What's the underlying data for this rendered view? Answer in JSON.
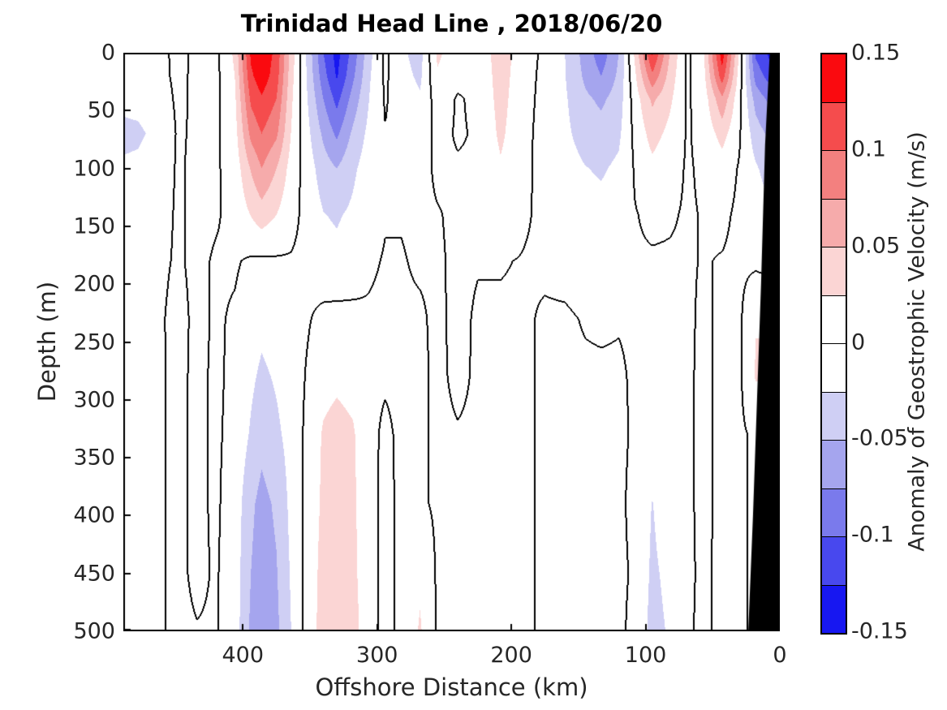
{
  "chart_data": {
    "type": "filled-contour",
    "title": "Trinidad Head Line , 2018/06/20",
    "xlabel": "Offshore Distance (km)",
    "ylabel": "Depth (m)",
    "units": "m/s",
    "x_axis_reversed": true,
    "x_range_km": [
      489,
      0
    ],
    "depth_range_m": [
      0,
      500
    ],
    "x_ticks": [
      {
        "label": "400",
        "km": 400
      },
      {
        "label": "300",
        "km": 300
      },
      {
        "label": "200",
        "km": 200
      },
      {
        "label": "100",
        "km": 100
      },
      {
        "label": "0",
        "km": 0
      }
    ],
    "y_ticks": [
      {
        "label": "0",
        "m": 0
      },
      {
        "label": "50",
        "m": 50
      },
      {
        "label": "100",
        "m": 100
      },
      {
        "label": "150",
        "m": 150
      },
      {
        "label": "200",
        "m": 200
      },
      {
        "label": "250",
        "m": 250
      },
      {
        "label": "300",
        "m": 300
      },
      {
        "label": "350",
        "m": 350
      },
      {
        "label": "400",
        "m": 400
      },
      {
        "label": "450",
        "m": 450
      },
      {
        "label": "500",
        "m": 500
      }
    ],
    "colorbar": {
      "label": "Anomaly of Geostrophic Velocity (m/s)",
      "ticks": [
        {
          "label": "0.15",
          "value": 0.15
        },
        {
          "label": "0.1",
          "value": 0.1
        },
        {
          "label": "0.05",
          "value": 0.05
        },
        {
          "label": "0",
          "value": 0
        },
        {
          "label": "-0.05",
          "value": -0.05
        },
        {
          "label": "-0.1",
          "value": -0.1
        },
        {
          "label": "-0.15",
          "value": -0.15
        }
      ],
      "level_step": 0.025,
      "band_colors_top_to_bottom": [
        "#fa0a0f",
        "#f54c4d",
        "#f3807f",
        "#f6abab",
        "#fbd5d4",
        "#ffffff",
        "#ffffff",
        "#cfcff4",
        "#a5a5ee",
        "#7a7aec",
        "#4848ee",
        "#1717f1"
      ]
    },
    "positive_band_colors_low_to_high": [
      "#fbd5d4",
      "#f6abab",
      "#f3807f",
      "#f54c4d",
      "#fa0a0f"
    ],
    "negative_band_colors_low_to_high": [
      "#cfcff4",
      "#a5a5ee",
      "#7a7aec",
      "#4848ee",
      "#1717f1"
    ],
    "zero_contour_color": "#000000",
    "bathymetry_mask": {
      "color": "#000000",
      "points_km_depth": [
        [
          7.5,
          0
        ],
        [
          11,
          80
        ],
        [
          14,
          200
        ],
        [
          17,
          300
        ],
        [
          20,
          400
        ],
        [
          23.5,
          500
        ]
      ]
    },
    "grid": {
      "x_km": [
        489,
        478,
        462,
        448,
        434,
        420,
        406,
        394,
        386,
        375,
        364,
        352,
        340,
        330,
        318,
        305,
        294,
        282,
        268,
        255,
        240,
        225,
        208,
        190,
        175,
        160,
        145,
        133,
        120,
        108,
        95,
        82,
        69,
        57,
        43,
        30,
        18,
        8,
        0
      ],
      "depth_m": [
        0,
        20,
        40,
        70,
        100,
        140,
        180,
        230,
        280,
        330,
        390,
        450,
        500
      ],
      "anomaly_ms": [
        [
          -0.012,
          -0.01,
          -0.006,
          0.006,
          -0.005,
          -0.006,
          0.03,
          0.13,
          0.145,
          0.118,
          0.04,
          -0.03,
          -0.1,
          -0.135,
          -0.09,
          -0.03,
          0.005,
          -0.02,
          -0.035,
          0.03,
          0.01,
          0.008,
          0.038,
          0.01,
          -0.005,
          -0.025,
          -0.06,
          -0.09,
          -0.05,
          0.03,
          0.13,
          0.05,
          -0.005,
          0.02,
          0.14,
          0.02,
          -0.105,
          -0.13,
          -0.135
        ],
        [
          -0.012,
          -0.011,
          -0.006,
          0.005,
          -0.005,
          -0.006,
          0.025,
          0.12,
          0.14,
          0.112,
          0.035,
          -0.028,
          -0.09,
          -0.128,
          -0.08,
          -0.026,
          0.004,
          -0.016,
          -0.03,
          0.022,
          0.006,
          0.006,
          0.036,
          0.008,
          -0.006,
          -0.024,
          -0.055,
          -0.075,
          -0.045,
          0.02,
          0.095,
          0.04,
          -0.004,
          0.015,
          0.115,
          0.012,
          -0.085,
          -0.11,
          -0.115
        ],
        [
          -0.02,
          -0.018,
          -0.01,
          0.004,
          -0.004,
          -0.005,
          0.02,
          0.105,
          0.122,
          0.1,
          0.03,
          -0.024,
          -0.075,
          -0.108,
          -0.065,
          -0.022,
          0.002,
          -0.01,
          -0.022,
          0.012,
          -0.002,
          0.004,
          0.034,
          0.006,
          -0.006,
          -0.022,
          -0.045,
          -0.055,
          -0.038,
          0.012,
          0.055,
          0.03,
          -0.003,
          0.01,
          0.07,
          0.006,
          -0.06,
          -0.08,
          -0.085
        ],
        [
          -0.03,
          -0.029,
          -0.018,
          0.003,
          -0.004,
          -0.004,
          0.015,
          0.082,
          0.1,
          0.08,
          0.024,
          -0.018,
          -0.055,
          -0.08,
          -0.045,
          -0.016,
          -0.001,
          -0.005,
          -0.012,
          0.006,
          -0.002,
          0.002,
          0.03,
          0.004,
          -0.006,
          -0.02,
          -0.035,
          -0.04,
          -0.03,
          0.006,
          0.035,
          0.018,
          -0.002,
          0.006,
          0.035,
          0.002,
          -0.038,
          -0.055,
          -0.06
        ],
        [
          -0.022,
          -0.02,
          -0.008,
          0.002,
          -0.004,
          -0.003,
          0.01,
          0.052,
          0.075,
          0.05,
          0.015,
          -0.012,
          -0.038,
          -0.05,
          -0.03,
          -0.01,
          -0.002,
          -0.002,
          -0.006,
          0.003,
          0.002,
          0.002,
          0.022,
          0.003,
          -0.005,
          -0.015,
          -0.024,
          -0.028,
          -0.02,
          0.002,
          0.018,
          0.008,
          -0.002,
          0.003,
          0.012,
          -0.002,
          -0.022,
          -0.035,
          -0.038
        ],
        [
          -0.012,
          -0.01,
          -0.005,
          0.002,
          -0.004,
          -0.002,
          0.006,
          0.026,
          0.038,
          0.025,
          0.008,
          -0.008,
          -0.024,
          -0.028,
          -0.02,
          -0.006,
          -0.001,
          -0.001,
          -0.003,
          -0.001,
          0.003,
          0.002,
          0.012,
          0.002,
          -0.004,
          -0.01,
          -0.015,
          -0.017,
          -0.012,
          -0.001,
          0.004,
          0.002,
          -0.002,
          0.001,
          0.004,
          -0.004,
          -0.012,
          -0.02,
          -0.022
        ],
        [
          -0.006,
          -0.005,
          -0.003,
          0.002,
          -0.004,
          0.002,
          0.002,
          -0.003,
          -0.004,
          -0.003,
          -0.002,
          -0.006,
          -0.015,
          -0.018,
          -0.012,
          -0.002,
          0.001,
          0.001,
          -0.002,
          -0.002,
          0.003,
          0.001,
          0.001,
          -0.001,
          -0.003,
          -0.005,
          -0.008,
          -0.009,
          -0.006,
          -0.002,
          -0.002,
          -0.002,
          -0.002,
          0.001,
          -0.001,
          -0.004,
          -0.005,
          -0.008,
          -0.01
        ],
        [
          -0.003,
          -0.002,
          -0.002,
          0.005,
          -0.004,
          0.002,
          -0.002,
          -0.01,
          -0.018,
          -0.012,
          -0.006,
          -0.002,
          0.006,
          0.008,
          0.006,
          0.002,
          0.003,
          0.002,
          0.002,
          -0.003,
          0.004,
          -0.002,
          -0.002,
          -0.002,
          0.002,
          0.002,
          -0.001,
          -0.002,
          -0.001,
          -0.002,
          -0.004,
          -0.003,
          -0.003,
          0.003,
          -0.003,
          -0.004,
          0.024,
          0.024,
          0.024
        ],
        [
          -0.003,
          -0.002,
          -0.002,
          0.004,
          -0.004,
          0.003,
          -0.004,
          -0.02,
          -0.03,
          -0.022,
          -0.012,
          0.002,
          0.016,
          0.02,
          0.016,
          0.003,
          0.002,
          0.003,
          0.003,
          -0.003,
          0.003,
          -0.002,
          -0.003,
          -0.003,
          0.003,
          0.003,
          0.002,
          0.002,
          0.002,
          -0.002,
          -0.006,
          -0.004,
          -0.003,
          0.004,
          -0.004,
          -0.004,
          0.027,
          0.027,
          0.027
        ],
        [
          -0.003,
          -0.002,
          -0.002,
          0.004,
          -0.004,
          0.003,
          -0.006,
          -0.028,
          -0.042,
          -0.03,
          -0.016,
          0.006,
          0.028,
          0.034,
          0.028,
          0.004,
          -0.003,
          0.003,
          0.003,
          -0.003,
          -0.001,
          -0.002,
          -0.003,
          -0.003,
          0.003,
          0.003,
          0.003,
          0.003,
          0.003,
          -0.002,
          -0.01,
          -0.006,
          -0.003,
          0.004,
          -0.004,
          -0.004,
          0.004,
          0.004,
          0.004
        ],
        [
          -0.003,
          -0.002,
          -0.002,
          0.004,
          -0.004,
          0.003,
          -0.01,
          -0.045,
          -0.058,
          -0.046,
          -0.018,
          0.008,
          0.03,
          0.038,
          0.03,
          0.004,
          -0.004,
          0.003,
          0.003,
          -0.003,
          -0.003,
          -0.003,
          -0.003,
          -0.003,
          0.003,
          0.003,
          0.003,
          0.003,
          0.003,
          -0.004,
          -0.026,
          -0.008,
          -0.003,
          0.004,
          -0.004,
          -0.004,
          0.004,
          0.004,
          0.004
        ],
        [
          -0.003,
          -0.002,
          -0.002,
          0.004,
          -0.004,
          0.002,
          -0.012,
          -0.05,
          -0.063,
          -0.052,
          -0.022,
          0.009,
          0.034,
          0.04,
          0.032,
          0.004,
          -0.004,
          0.003,
          0.02,
          -0.003,
          -0.003,
          -0.003,
          -0.003,
          -0.003,
          0.003,
          0.003,
          0.003,
          0.003,
          0.003,
          -0.002,
          -0.03,
          -0.018,
          -0.003,
          0.003,
          -0.004,
          -0.004,
          0.004,
          0.004,
          0.004
        ],
        [
          -0.003,
          -0.002,
          -0.002,
          0.004,
          0.001,
          0.002,
          -0.012,
          -0.055,
          -0.068,
          -0.056,
          -0.025,
          0.01,
          0.036,
          0.042,
          0.036,
          0.005,
          -0.004,
          0.003,
          0.028,
          -0.003,
          -0.003,
          -0.003,
          -0.003,
          -0.003,
          0.003,
          0.003,
          0.003,
          0.003,
          0.003,
          -0.004,
          -0.034,
          -0.022,
          -0.002,
          0.003,
          -0.004,
          -0.004,
          0.004,
          0.004,
          0.004
        ]
      ]
    }
  }
}
